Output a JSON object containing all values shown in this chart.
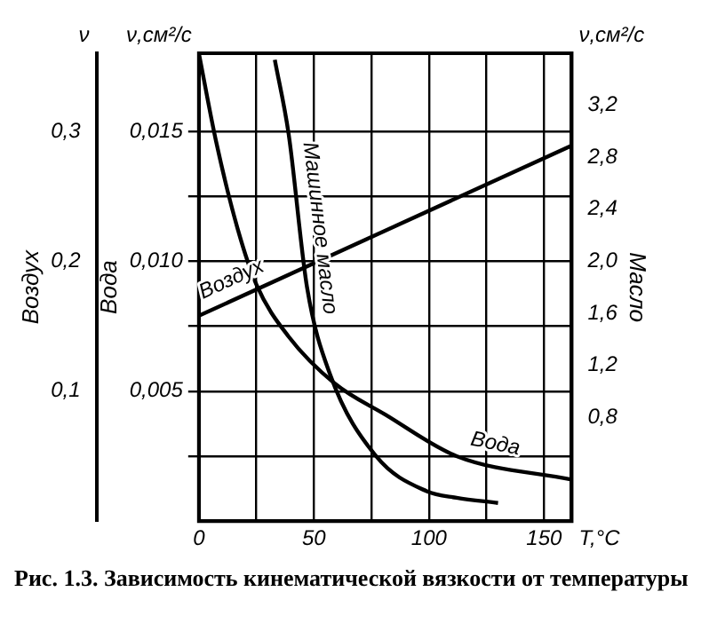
{
  "chart_data": {
    "type": "line",
    "xlabel": "T,°C",
    "ylabel": "Вода",
    "y2label": "Масло",
    "y3label": "Воздух",
    "annotations": [
      "ν",
      "ν,см²/с",
      "ν,см²/с",
      "Рис. 1.3. Зависимость кинематической вязкости от температуры"
    ],
    "xlim": [
      0,
      162
    ],
    "xticks": [
      {
        "value": 0,
        "label": "0"
      },
      {
        "value": 25,
        "label": null
      },
      50,
      {
        "value": 75,
        "label": null
      },
      100,
      {
        "value": 125,
        "label": null
      },
      150
    ],
    "ylim": [
      0,
      0.018
    ],
    "yticks": [
      {
        "value": 0.0025,
        "label": null
      },
      {
        "value": 0.005,
        "label": "0,005"
      },
      {
        "value": 0.0075,
        "label": null
      },
      {
        "value": 0.01,
        "label": "0,010"
      },
      {
        "value": 0.0125,
        "label": null
      },
      {
        "value": 0.015,
        "label": "0,015"
      }
    ],
    "y2lim": [
      0,
      3.6
    ],
    "y2ticks": [
      {
        "value": 0.8,
        "label": "0,8"
      },
      {
        "value": 1.2,
        "label": "1,2"
      },
      {
        "value": 1.6,
        "label": "1,6"
      },
      {
        "value": 2.0,
        "label": "2,0"
      },
      {
        "value": 2.4,
        "label": "2,4"
      },
      {
        "value": 2.8,
        "label": "2,8"
      },
      {
        "value": 3.2,
        "label": "3,2"
      }
    ],
    "y3lim": [
      0,
      0.36
    ],
    "y3ticks": [
      {
        "value": 0.1,
        "label": "0,1"
      },
      {
        "value": 0.2,
        "label": "0,2"
      },
      {
        "value": 0.3,
        "label": "0,3"
      }
    ],
    "series": [
      {
        "name": "Воздух",
        "color": "#000000",
        "axis": "y3",
        "x": [
          0,
          162
        ],
        "values": [
          0.158,
          0.289
        ]
      },
      {
        "name": "Вода",
        "color": "#000000",
        "x": [
          0,
          7.5,
          17,
          25,
          39,
          59,
          81,
          112,
          162
        ],
        "values": [
          0.018,
          0.0146,
          0.0112,
          0.0091,
          0.0071,
          0.0053,
          0.0041,
          0.0025,
          0.0016
        ]
      },
      {
        "name": "Машинное масло",
        "color": "#000000",
        "axis": "y2",
        "x": [
          33,
          39,
          47,
          57,
          77,
          99,
          112,
          130
        ],
        "values": [
          3.55,
          2.98,
          1.8,
          1.13,
          0.5,
          0.23,
          0.18,
          0.14
        ]
      }
    ],
    "grid": true,
    "legend": false,
    "marker": "none",
    "line_style": "solid"
  }
}
